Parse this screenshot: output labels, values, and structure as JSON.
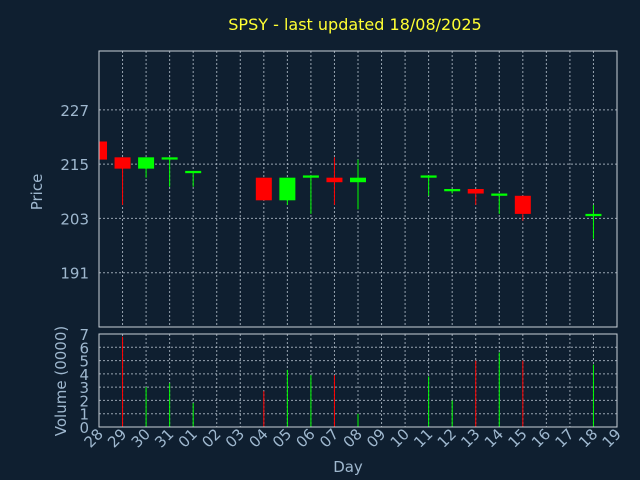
{
  "chart_data": {
    "type": "candlestick",
    "title": "SPSY - last updated 18/08/2025",
    "xlabel": "Day",
    "price_ylabel": "Price",
    "volume_ylabel": "Volume (0000)",
    "x_ticks": [
      "28",
      "29",
      "30",
      "31",
      "01",
      "02",
      "03",
      "04",
      "05",
      "06",
      "07",
      "08",
      "09",
      "10",
      "11",
      "12",
      "13",
      "14",
      "15",
      "16",
      "17",
      "18",
      "19"
    ],
    "price_ylim": [
      179,
      240
    ],
    "price_ticks": [
      191,
      203,
      215,
      227
    ],
    "volume_ylim": [
      0,
      7
    ],
    "volume_ticks": [
      0,
      1,
      2,
      3,
      4,
      5,
      6,
      7
    ],
    "grid": true,
    "up_color": "#00ff00",
    "down_color": "#ff0000",
    "candles": [
      {
        "day": "28",
        "open": 220.0,
        "high": 220.0,
        "low": 216.0,
        "close": 216.0,
        "volume": 0
      },
      {
        "day": "29",
        "open": 216.5,
        "high": 216.5,
        "low": 206.0,
        "close": 214.0,
        "volume": 6.8
      },
      {
        "day": "30",
        "open": 214.0,
        "high": 216.5,
        "low": 212.0,
        "close": 216.5,
        "volume": 3.0
      },
      {
        "day": "31",
        "open": 216.0,
        "high": 216.5,
        "low": 210.0,
        "close": 216.5,
        "volume": 3.3
      },
      {
        "day": "01",
        "open": 213.0,
        "high": 213.5,
        "low": 210.0,
        "close": 213.5,
        "volume": 1.8
      },
      {
        "day": "04",
        "open": 212.0,
        "high": 212.0,
        "low": 207.0,
        "close": 207.0,
        "volume": 2.7
      },
      {
        "day": "05",
        "open": 207.0,
        "high": 212.0,
        "low": 206.0,
        "close": 212.0,
        "volume": 4.3
      },
      {
        "day": "06",
        "open": 212.0,
        "high": 212.5,
        "low": 204.0,
        "close": 212.5,
        "volume": 3.9
      },
      {
        "day": "07",
        "open": 212.0,
        "high": 216.5,
        "low": 206.0,
        "close": 211.0,
        "volume": 3.9
      },
      {
        "day": "08",
        "open": 211.0,
        "high": 216.0,
        "low": 205.0,
        "close": 212.0,
        "volume": 1.0
      },
      {
        "day": "11",
        "open": 212.0,
        "high": 212.5,
        "low": 208.0,
        "close": 212.5,
        "volume": 3.8
      },
      {
        "day": "12",
        "open": 209.0,
        "high": 209.5,
        "low": 208.5,
        "close": 209.5,
        "volume": 2.0
      },
      {
        "day": "13",
        "open": 209.5,
        "high": 209.5,
        "low": 206.0,
        "close": 208.5,
        "volume": 5.0
      },
      {
        "day": "14",
        "open": 208.0,
        "high": 208.5,
        "low": 204.0,
        "close": 208.5,
        "volume": 5.6
      },
      {
        "day": "15",
        "open": 208.0,
        "high": 208.0,
        "low": 202.5,
        "close": 204.0,
        "volume": 5.0
      },
      {
        "day": "18",
        "open": 203.5,
        "high": 206.0,
        "low": 198.5,
        "close": 204.0,
        "volume": 4.7
      }
    ]
  }
}
